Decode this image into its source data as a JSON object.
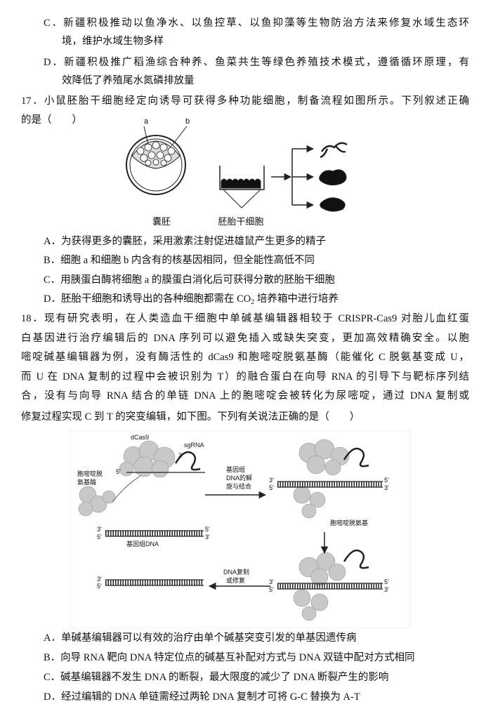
{
  "previous_question": {
    "options": [
      {
        "lines": [
          "C．新疆积极推动以鱼净水、以鱼控草、以鱼抑藻等生物防治方法来修复水域生态环",
          "境，维护水域生物多样"
        ]
      },
      {
        "lines": [
          "D．新疆积极推广稻渔综合种养、鱼菜共生等绿色养殖技术模式，遵循循环原理，有",
          "效降低了养殖尾水氮磷排放量"
        ]
      }
    ]
  },
  "q17": {
    "stem_lines": [
      "17．小鼠胚胎干细胞经定向诱导可获得多种功能细胞，制备流程如图所示。下列叙述正确",
      "的是（　　）"
    ],
    "figure": {
      "label_a": "a",
      "label_b": "b",
      "label_blastocyst": "囊胚",
      "label_esc": "胚胎干细胞"
    },
    "options": [
      [
        "A．为获得更多的囊胚，采用激素注射促进雄鼠产生更多的精子"
      ],
      [
        "B．细胞 a 和细胞 b 内含有的核基因相同，但全能性高低不同"
      ],
      [
        "C．用胰蛋白酶将细胞 a 的膜蛋白消化后可获得分散的胚胎干细胞"
      ],
      [
        "D．胚胎干细胞和诱导出的各种细胞都需在 CO",
        "2",
        " 培养箱中进行培养"
      ]
    ]
  },
  "q18": {
    "stem_lines": [
      "18．现有研究表明，在人类造血干细胞中单碱基编辑器相较于 CRISPR-Cas9 对胎儿血红蛋",
      "白基因进行治疗编辑后的 DNA 序列可以避免插入或缺失突变，更加高效精确安全。以胞",
      "嘧啶碱基编辑器为例，没有酶活性的 dCas9 和胞嘧啶脱氨基酶（能催化 C 脱氨基变成 U，",
      "而 U 在 DNA 复制的过程中会被识别为 T）的融合蛋白在向导 RNA 的引导下与靶标序列结",
      "合，没有与向导 RNA 结合的单链 DNA 上的胞嘧啶会被转化为尿嘧啶，通过 DNA 复制或",
      "修复过程实现 C 到 T 的突变编辑，如下图。下列有关说法正确的是（　　）"
    ],
    "figure": {
      "dcas9": "dCas9",
      "sgrna": "sgRNA",
      "deaminase": [
        "胞嘧啶脱",
        "氨基酶"
      ],
      "unwind": [
        "基因组",
        "DNA的解",
        "旋与结合"
      ],
      "deamination": "胞嘧啶脱氨基",
      "genomic_dna": "基因组DNA",
      "replication": [
        "DNA复制",
        "或修复"
      ],
      "end_3": "3'",
      "end_5": "5'"
    },
    "options": [
      "A．单碱基编辑器可以有效的治疗由单个碱基突变引发的单基因遗传病",
      "B．向导 RNA 靶向 DNA 特定位点的碱基互补配对方式与 DNA 双链中配对方式相同",
      "C．碱基编辑器不发生 DNA 的断裂，最大限度的减少了 DNA 断裂产生的影响",
      "D．经过编辑的 DNA 单链需经过两轮 DNA 复制才可将 G-C 替换为 A-T"
    ]
  }
}
